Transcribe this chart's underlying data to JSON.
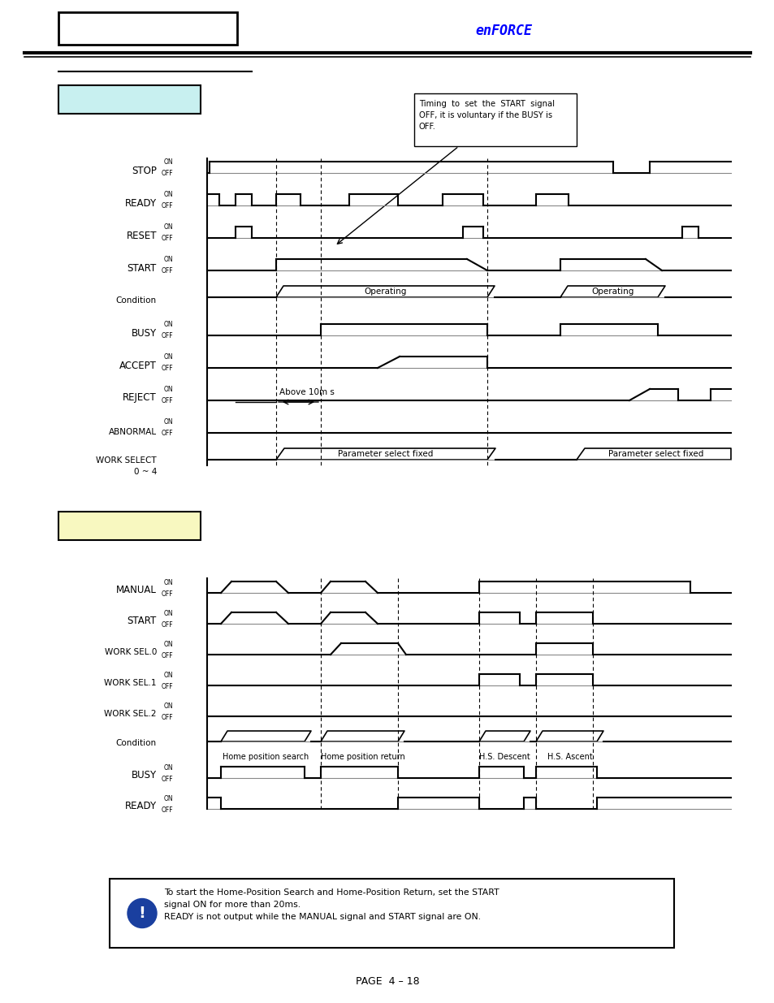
{
  "page_text": "PAGE  4 – 18",
  "cyan_box_color": "#c8f0f0",
  "yellow_box_color": "#f8f8c0",
  "annotation_text": "Timing  to  set  the  START  signal\nOFF, it is voluntary if the BUSY is\nOFF.",
  "note_text": "To start the Home-Position Search and Home-Position Return, set the START\nsignal ON for more than 20ms.\nREADY is not output while the MANUAL signal and START signal are ON."
}
